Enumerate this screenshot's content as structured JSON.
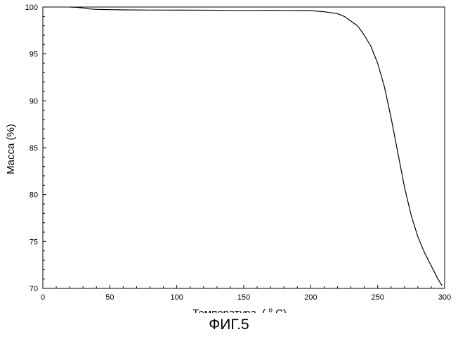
{
  "chart_data": {
    "type": "line",
    "title": "",
    "xlabel": "Температура",
    "xlabel_unit_base": "(",
    "xlabel_unit_sup": "o",
    "xlabel_unit_tail": "C)",
    "ylabel": "Масса (%)",
    "xlim": [
      0,
      300
    ],
    "ylim": [
      70,
      100
    ],
    "x_ticks": [
      "0",
      "50",
      "100",
      "150",
      "200",
      "250",
      "300"
    ],
    "y_ticks": [
      "70",
      "75",
      "80",
      "85",
      "90",
      "95",
      "100"
    ],
    "grid": false,
    "legend": "none",
    "series": [
      {
        "color": "#000000",
        "x": [
          20,
          25,
          30,
          35,
          40,
          50,
          60,
          80,
          100,
          120,
          140,
          160,
          180,
          200,
          210,
          220,
          225,
          230,
          235,
          240,
          245,
          250,
          255,
          260,
          265,
          270,
          275,
          280,
          285,
          290,
          295,
          298
        ],
        "y": [
          100.0,
          99.97,
          99.9,
          99.8,
          99.75,
          99.72,
          99.7,
          99.68,
          99.67,
          99.66,
          99.65,
          99.65,
          99.64,
          99.62,
          99.5,
          99.3,
          99.0,
          98.5,
          98.0,
          97.0,
          95.8,
          94.0,
          91.5,
          88.2,
          84.5,
          80.8,
          77.8,
          75.5,
          73.8,
          72.4,
          71.0,
          70.3
        ]
      }
    ]
  },
  "caption": "ФИГ.5"
}
